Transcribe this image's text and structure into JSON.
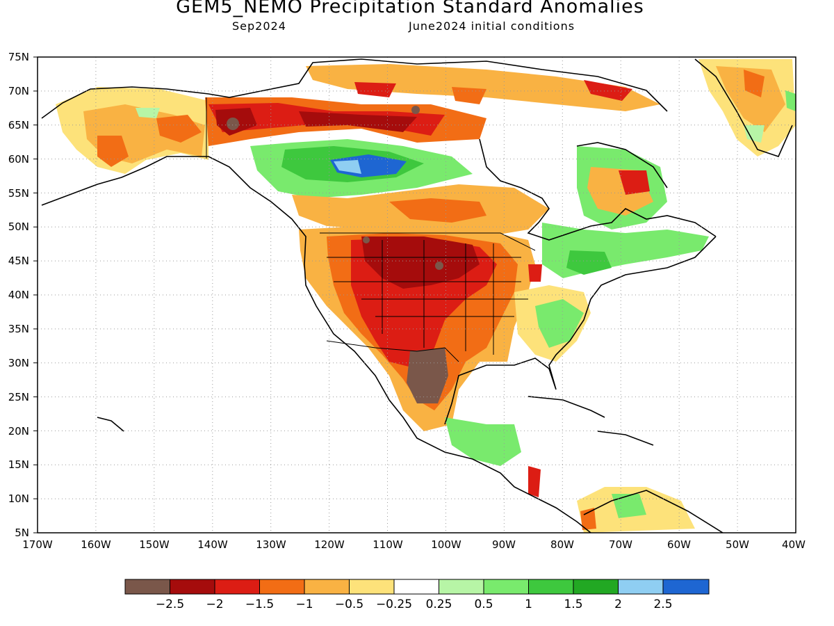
{
  "title": "GEM5_NEMO Precipitation Standard Anomalies",
  "subtitle_left": "Sep2024",
  "subtitle_right": "June2024 initial conditions",
  "map": {
    "lon_range": [
      -170,
      -40
    ],
    "lat_range": [
      5,
      75
    ],
    "lat_labels": [
      "75N",
      "70N",
      "65N",
      "60N",
      "55N",
      "50N",
      "45N",
      "40N",
      "35N",
      "30N",
      "25N",
      "20N",
      "15N",
      "10N",
      "5N"
    ],
    "lon_labels": [
      "170W",
      "160W",
      "150W",
      "140W",
      "130W",
      "120W",
      "110W",
      "100W",
      "90W",
      "80W",
      "70W",
      "60W",
      "50W",
      "40W"
    ],
    "grid": "dotted"
  },
  "colorbar": {
    "colors": [
      "#7a574a",
      "#a50c0c",
      "#dc1d14",
      "#f26d15",
      "#f9b243",
      "#fde27a",
      "#ffffff",
      "#b7f5a6",
      "#79ea6d",
      "#3ec83e",
      "#22a823",
      "#8fcef2",
      "#1e66d2"
    ],
    "labels": [
      "−2.5",
      "−2",
      "−1.5",
      "−1",
      "−0.5",
      "−0.25",
      "0.25",
      "0.5",
      "1",
      "1.5",
      "2",
      "2.5"
    ]
  }
}
